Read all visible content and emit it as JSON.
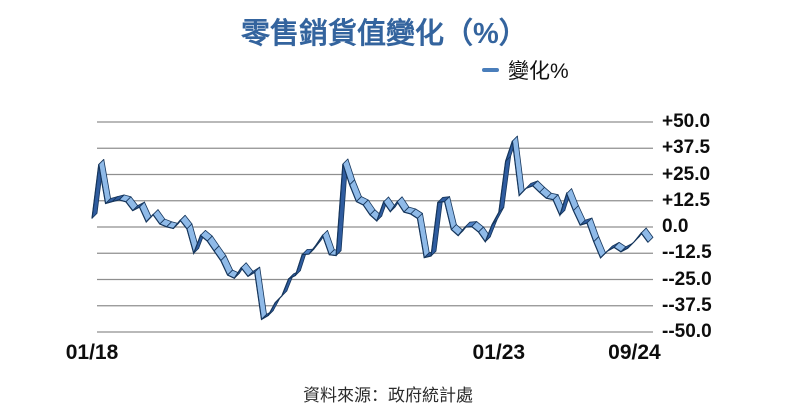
{
  "title": "零售銷貨值變化（%）",
  "legend": {
    "label": "變化%"
  },
  "source_note": "資料來源：政府統計處",
  "colors": {
    "title": "#34649E",
    "grid": "#8F8F8F",
    "axis_text": "#0D0D0D",
    "ribbon_edge": "#16365C",
    "ribbon_light": "#8FBAE8",
    "ribbon_dark": "#2F5C9F",
    "ribbon_mid": "#4F80C4",
    "legend_dash": "#4A7EBB",
    "footer_text": "#2B2B2B",
    "background": "#FFFFFF"
  },
  "chart_data": {
    "type": "line",
    "style": "3d-ribbon",
    "title": "零售銷貨值變化（%）",
    "frequency": "monthly",
    "grid": "horizontal",
    "legend_position": "top-right",
    "ylim": [
      -50,
      50
    ],
    "y_ticks": [
      {
        "label": "+50.0",
        "value": 50
      },
      {
        "label": "+37.5",
        "value": 37.5
      },
      {
        "label": "+25.0",
        "value": 25
      },
      {
        "label": "+12.5",
        "value": 12.5
      },
      {
        "label": "0.0",
        "value": 0
      },
      {
        "label": "--12.5",
        "value": -12.5
      },
      {
        "label": "--25.0",
        "value": -25
      },
      {
        "label": "--37.5",
        "value": -37.5
      },
      {
        "label": "--50.0",
        "value": -50
      }
    ],
    "x_ticks": [
      {
        "label": "01/18",
        "index": 0
      },
      {
        "label": "01/23",
        "index": 60
      },
      {
        "label": "09/24",
        "index": 80
      }
    ],
    "series": [
      {
        "name": "變化%",
        "values": [
          4.1,
          29.8,
          11.2,
          12.1,
          12.9,
          12.0,
          7.8,
          9.5,
          2.4,
          5.9,
          1.4,
          0.1,
          -0.7,
          3.2,
          -0.9,
          -12.5,
          -4.0,
          -6.7,
          -11.4,
          -16.0,
          -22.9,
          -24.4,
          -19.4,
          -23.5,
          -21.5,
          -44.0,
          -42.1,
          -36.1,
          -32.8,
          -24.7,
          -23.1,
          -13.1,
          -12.9,
          -8.8,
          -4.0,
          -13.2,
          -13.6,
          30.0,
          20.1,
          12.1,
          10.5,
          5.8,
          2.9,
          11.9,
          7.3,
          12.0,
          7.1,
          6.2,
          4.1,
          -14.6,
          -13.8,
          11.7,
          12.1,
          -1.2,
          -4.1,
          -0.1,
          0.2,
          -2.4,
          -7.0,
          1.1,
          7.0,
          31.3,
          40.9,
          15.0,
          18.4,
          19.6,
          16.5,
          13.7,
          13.0,
          5.6,
          15.9,
          7.8,
          0.9,
          1.9,
          -7.0,
          -14.7,
          -11.5,
          -9.7,
          -11.8,
          -10.1,
          -6.9,
          -2.9,
          -7.3
        ]
      }
    ]
  }
}
